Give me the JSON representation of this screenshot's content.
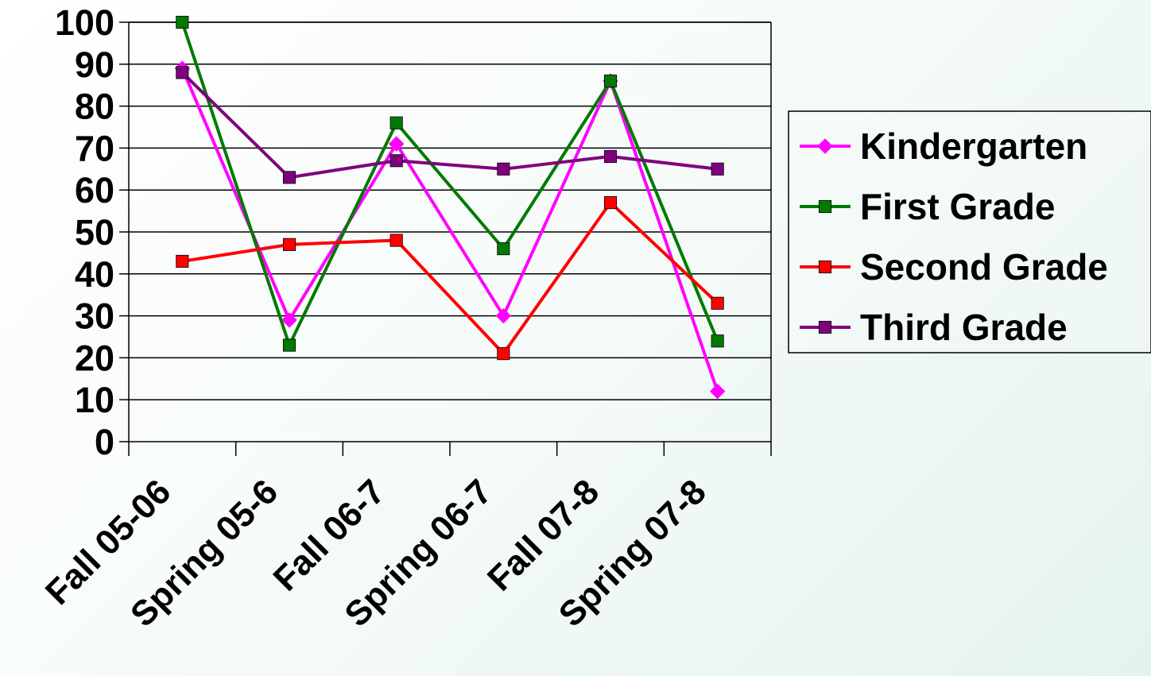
{
  "chart_data": {
    "type": "line",
    "title": "",
    "xlabel": "",
    "ylabel": "",
    "categories": [
      "Fall 05-06",
      "Spring 05-6",
      "Fall 06-7",
      "Spring 06-7",
      "Fall 07-8",
      "Spring 07-8"
    ],
    "ylim": [
      0,
      100
    ],
    "yticks": [
      0,
      10,
      20,
      30,
      40,
      50,
      60,
      70,
      80,
      90,
      100
    ],
    "grid": true,
    "legend_position": "right",
    "series": [
      {
        "name": "Kindergarten",
        "color": "#ff00ff",
        "marker": "diamond",
        "values": [
          89,
          29,
          71,
          30,
          86,
          12
        ]
      },
      {
        "name": "First Grade",
        "color": "#007a00",
        "marker": "square",
        "values": [
          100,
          23,
          76,
          46,
          86,
          24
        ]
      },
      {
        "name": "Second Grade",
        "color": "#ff0000",
        "marker": "square",
        "values": [
          43,
          47,
          48,
          21,
          57,
          33
        ]
      },
      {
        "name": "Third Grade",
        "color": "#800080",
        "marker": "square",
        "values": [
          88,
          63,
          67,
          65,
          68,
          65
        ]
      }
    ]
  }
}
